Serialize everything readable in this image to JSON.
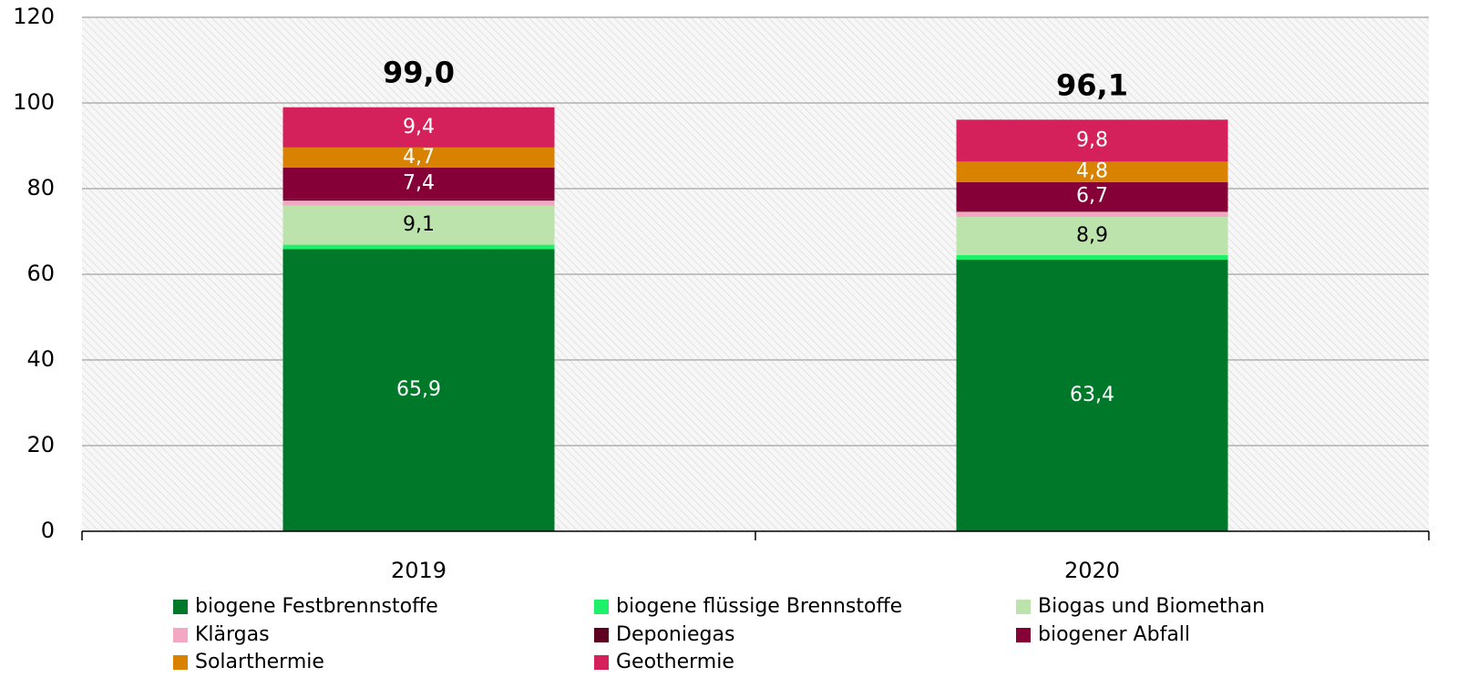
{
  "chart_data": {
    "type": "stacked_bar",
    "categories": [
      "2019",
      "2020"
    ],
    "series": [
      {
        "name": "biogene Festbrennstoffe",
        "color": "#00782a",
        "values": [
          65.9,
          63.4
        ],
        "value_labels": [
          "65,9",
          "63,4"
        ]
      },
      {
        "name": "biogene flüssige Brennstoffe",
        "color": "#1ef06a",
        "values": [
          1.0,
          1.1
        ],
        "value_labels": [
          null,
          null
        ]
      },
      {
        "name": "Biogas und Biomethan",
        "color": "#bde3ac",
        "values": [
          9.1,
          8.9
        ],
        "value_labels": [
          "9,1",
          "8,9"
        ]
      },
      {
        "name": "Klärgas",
        "color": "#f2a7c3",
        "values": [
          1.2,
          1.2
        ],
        "value_labels": [
          null,
          null
        ]
      },
      {
        "name": "Deponiegas",
        "color": "#5e0022",
        "values": [
          0.3,
          0.2
        ],
        "value_labels": [
          null,
          null
        ]
      },
      {
        "name": "biogener Abfall",
        "color": "#860038",
        "values": [
          7.4,
          6.7
        ],
        "value_labels": [
          "7,4",
          "6,7"
        ]
      },
      {
        "name": "Solarthermie",
        "color": "#d98200",
        "values": [
          4.7,
          4.8
        ],
        "value_labels": [
          "4,7",
          "4,8"
        ]
      },
      {
        "name": "Geothermie",
        "color": "#d4215c",
        "values": [
          9.4,
          9.8
        ],
        "value_labels": [
          "9,4",
          "9,8"
        ]
      }
    ],
    "totals": [
      99.0,
      96.1
    ],
    "total_labels": [
      "99,0",
      "96,1"
    ],
    "ylim": [
      0,
      120
    ],
    "yticks": [
      0,
      20,
      40,
      60,
      80,
      100,
      120
    ],
    "grid": true
  }
}
